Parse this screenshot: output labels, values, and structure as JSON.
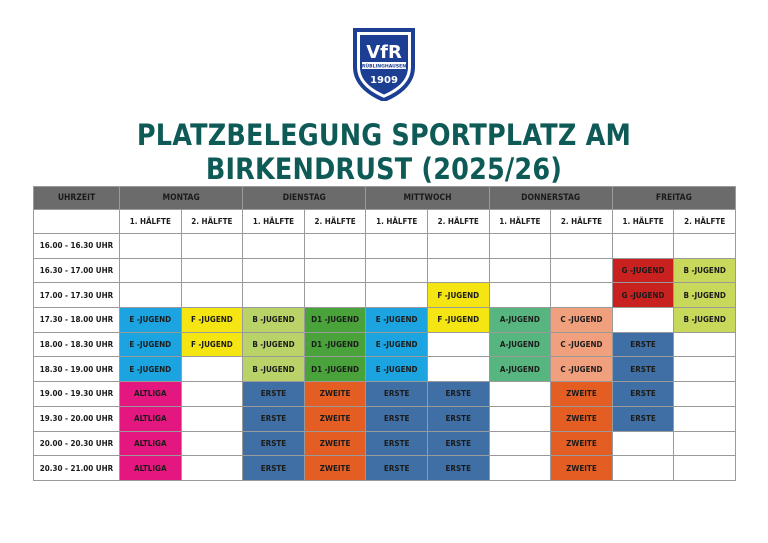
{
  "logo": {
    "club": "VfR",
    "town": "RÜBLINGHAUSEN",
    "year": "1909"
  },
  "title": "PLATZBELEGUNG  SPORTPLATZ AM BIRKENDRUST (2025/26)",
  "table": {
    "corner_label": "UHRZEIT",
    "days": [
      "MONTAG",
      "DIENSTAG",
      "MITTWOCH",
      "DONNERSTAG",
      "FREITAG"
    ],
    "halves": [
      "1. HÄLFTE",
      "2. HÄLFTE"
    ],
    "rows": [
      {
        "time": "16.00 - 16.30 UHR",
        "cells": [
          {
            "t": "",
            "c": ""
          },
          {
            "t": "",
            "c": ""
          },
          {
            "t": "",
            "c": ""
          },
          {
            "t": "",
            "c": ""
          },
          {
            "t": "",
            "c": ""
          },
          {
            "t": "",
            "c": ""
          },
          {
            "t": "",
            "c": ""
          },
          {
            "t": "",
            "c": ""
          },
          {
            "t": "",
            "c": ""
          },
          {
            "t": "",
            "c": ""
          }
        ]
      },
      {
        "time": "16.30 - 17.00 UHR",
        "cells": [
          {
            "t": "",
            "c": ""
          },
          {
            "t": "",
            "c": ""
          },
          {
            "t": "",
            "c": ""
          },
          {
            "t": "",
            "c": ""
          },
          {
            "t": "",
            "c": ""
          },
          {
            "t": "",
            "c": ""
          },
          {
            "t": "",
            "c": ""
          },
          {
            "t": "",
            "c": ""
          },
          {
            "t": "G -JUGEND",
            "c": "#c8211f"
          },
          {
            "t": "B -JUGEND",
            "c": "#c8d85a"
          }
        ]
      },
      {
        "time": "17.00 - 17.30 UHR",
        "cells": [
          {
            "t": "",
            "c": ""
          },
          {
            "t": "",
            "c": ""
          },
          {
            "t": "",
            "c": ""
          },
          {
            "t": "",
            "c": ""
          },
          {
            "t": "",
            "c": ""
          },
          {
            "t": "F -JUGEND",
            "c": "#f4e513"
          },
          {
            "t": "",
            "c": ""
          },
          {
            "t": "",
            "c": ""
          },
          {
            "t": "G -JUGEND",
            "c": "#c8211f"
          },
          {
            "t": "B -JUGEND",
            "c": "#c8d85a"
          }
        ]
      },
      {
        "time": "17.30 - 18.00 UHR",
        "cells": [
          {
            "t": "E -JUGEND",
            "c": "#1ba4df"
          },
          {
            "t": "F -JUGEND",
            "c": "#f4e513"
          },
          {
            "t": "B -JUGEND",
            "c": "#b9d369"
          },
          {
            "t": "D1 -JUGEND",
            "c": "#4aa23b"
          },
          {
            "t": "E -JUGEND",
            "c": "#1ba4df"
          },
          {
            "t": "F -JUGEND",
            "c": "#f4e513"
          },
          {
            "t": "A-JUGEND",
            "c": "#57b67f"
          },
          {
            "t": "C -JUGEND",
            "c": "#f1a07d"
          },
          {
            "t": "",
            "c": ""
          },
          {
            "t": "B -JUGEND",
            "c": "#c8d85a"
          }
        ]
      },
      {
        "time": "18.00 - 18.30 UHR",
        "cells": [
          {
            "t": "E -JUGEND",
            "c": "#1ba4df"
          },
          {
            "t": "F -JUGEND",
            "c": "#f4e513"
          },
          {
            "t": "B -JUGEND",
            "c": "#b9d369"
          },
          {
            "t": "D1 -JUGEND",
            "c": "#4aa23b"
          },
          {
            "t": "E -JUGEND",
            "c": "#1ba4df"
          },
          {
            "t": "",
            "c": ""
          },
          {
            "t": "A-JUGEND",
            "c": "#57b67f"
          },
          {
            "t": "C -JUGEND",
            "c": "#f1a07d"
          },
          {
            "t": "ERSTE",
            "c": "#3f6fa4"
          },
          {
            "t": "",
            "c": ""
          }
        ]
      },
      {
        "time": "18.30 - 19.00 UHR",
        "cells": [
          {
            "t": "E -JUGEND",
            "c": "#1ba4df"
          },
          {
            "t": "",
            "c": ""
          },
          {
            "t": "B -JUGEND",
            "c": "#b9d369"
          },
          {
            "t": "D1 -JUGEND",
            "c": "#4aa23b"
          },
          {
            "t": "E -JUGEND",
            "c": "#1ba4df"
          },
          {
            "t": "",
            "c": ""
          },
          {
            "t": "A-JUGEND",
            "c": "#57b67f"
          },
          {
            "t": "C -JUGEND",
            "c": "#f1a07d"
          },
          {
            "t": "ERSTE",
            "c": "#3f6fa4"
          },
          {
            "t": "",
            "c": ""
          }
        ]
      },
      {
        "time": "19.00 - 19.30 UHR",
        "cells": [
          {
            "t": "ALTLIGA",
            "c": "#e3177f"
          },
          {
            "t": "",
            "c": ""
          },
          {
            "t": "ERSTE",
            "c": "#3f6fa4"
          },
          {
            "t": "ZWEITE",
            "c": "#e45e23"
          },
          {
            "t": "ERSTE",
            "c": "#3f6fa4"
          },
          {
            "t": "ERSTE",
            "c": "#3f6fa4"
          },
          {
            "t": "",
            "c": ""
          },
          {
            "t": "ZWEITE",
            "c": "#e45e23"
          },
          {
            "t": "ERSTE",
            "c": "#3f6fa4"
          },
          {
            "t": "",
            "c": ""
          }
        ]
      },
      {
        "time": "19.30 - 20.00 UHR",
        "cells": [
          {
            "t": "ALTLIGA",
            "c": "#e3177f"
          },
          {
            "t": "",
            "c": ""
          },
          {
            "t": "ERSTE",
            "c": "#3f6fa4"
          },
          {
            "t": "ZWEITE",
            "c": "#e45e23"
          },
          {
            "t": "ERSTE",
            "c": "#3f6fa4"
          },
          {
            "t": "ERSTE",
            "c": "#3f6fa4"
          },
          {
            "t": "",
            "c": ""
          },
          {
            "t": "ZWEITE",
            "c": "#e45e23"
          },
          {
            "t": "ERSTE",
            "c": "#3f6fa4"
          },
          {
            "t": "",
            "c": ""
          }
        ]
      },
      {
        "time": "20.00 - 20.30 UHR",
        "cells": [
          {
            "t": "ALTLIGA",
            "c": "#e3177f"
          },
          {
            "t": "",
            "c": ""
          },
          {
            "t": "ERSTE",
            "c": "#3f6fa4"
          },
          {
            "t": "ZWEITE",
            "c": "#e45e23"
          },
          {
            "t": "ERSTE",
            "c": "#3f6fa4"
          },
          {
            "t": "ERSTE",
            "c": "#3f6fa4"
          },
          {
            "t": "",
            "c": ""
          },
          {
            "t": "ZWEITE",
            "c": "#e45e23"
          },
          {
            "t": "",
            "c": ""
          },
          {
            "t": "",
            "c": ""
          }
        ]
      },
      {
        "time": "20.30 - 21.00 UHR",
        "cells": [
          {
            "t": "ALTLIGA",
            "c": "#e3177f"
          },
          {
            "t": "",
            "c": ""
          },
          {
            "t": "ERSTE",
            "c": "#3f6fa4"
          },
          {
            "t": "ZWEITE",
            "c": "#e45e23"
          },
          {
            "t": "ERSTE",
            "c": "#3f6fa4"
          },
          {
            "t": "ERSTE",
            "c": "#3f6fa4"
          },
          {
            "t": "",
            "c": ""
          },
          {
            "t": "ZWEITE",
            "c": "#e45e23"
          },
          {
            "t": "",
            "c": ""
          },
          {
            "t": "",
            "c": ""
          }
        ]
      }
    ]
  },
  "colors": {
    "title": "#0d5a57",
    "logo_blue": "#1c3f93",
    "header_bg": "#6b6b6b"
  }
}
